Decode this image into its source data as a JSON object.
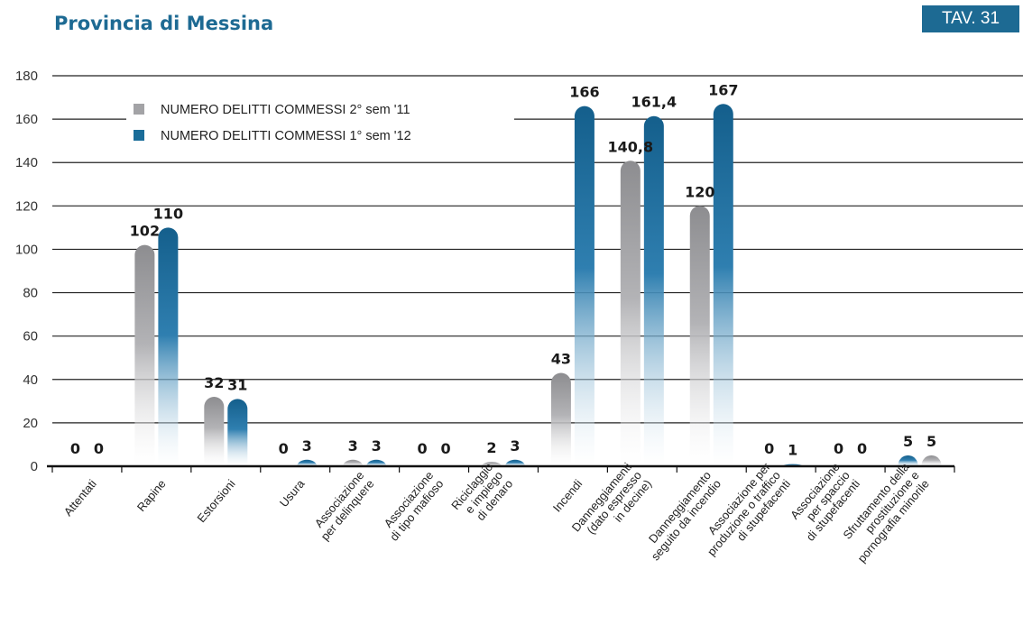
{
  "header": {
    "title": "Provincia di Messina",
    "badge": "TAV. 31"
  },
  "colors": {
    "series_2011": "#a3a3a6",
    "series_2012": "#1a6d99",
    "title": "#1d6a93"
  },
  "chart_data": {
    "type": "bar",
    "ylim": [
      0,
      180
    ],
    "yticks": [
      0,
      20,
      40,
      60,
      80,
      100,
      120,
      140,
      160,
      180
    ],
    "grid": true,
    "legend_position": "top-left",
    "categories": [
      [
        "Attentati"
      ],
      [
        "Rapine"
      ],
      [
        "Estorsioni"
      ],
      [
        "Usura"
      ],
      [
        "Associazione",
        "per delinquere"
      ],
      [
        "Associazione",
        "di tipo mafioso"
      ],
      [
        "Riciclaggio",
        "e impiego",
        "di denaro"
      ],
      [
        "Incendi"
      ],
      [
        "Danneggiamenti",
        "(dato espresso",
        "in decine)"
      ],
      [
        "Danneggiamento",
        "seguito da incendio"
      ],
      [
        "Associazione per",
        "produzione o traffico",
        "di stupefacenti"
      ],
      [
        "Associazione",
        "per spaccio",
        "di stupefacenti"
      ],
      [
        "Sfruttamento della",
        "prostituzione e",
        "pornografia minorile"
      ]
    ],
    "series": [
      {
        "name": "NUMERO DELITTI COMMESSI 2° sem '11",
        "values": [
          0,
          102,
          32,
          0,
          3,
          0,
          2,
          43,
          140.8,
          120,
          0,
          0,
          5
        ],
        "labels": [
          "0",
          "102",
          "32",
          "0",
          "3",
          "0",
          "2",
          "43",
          "140,8",
          "120",
          "0",
          "0",
          "5"
        ]
      },
      {
        "name": "NUMERO DELITTI COMMESSI 1° sem '12",
        "values": [
          0,
          110,
          31,
          3,
          3,
          0,
          3,
          166,
          161.4,
          167,
          1,
          0,
          5
        ],
        "labels": [
          "0",
          "110",
          "31",
          "3",
          "3",
          "0",
          "3",
          "166",
          "161,4",
          "167",
          "1",
          "0",
          "5"
        ]
      }
    ]
  }
}
